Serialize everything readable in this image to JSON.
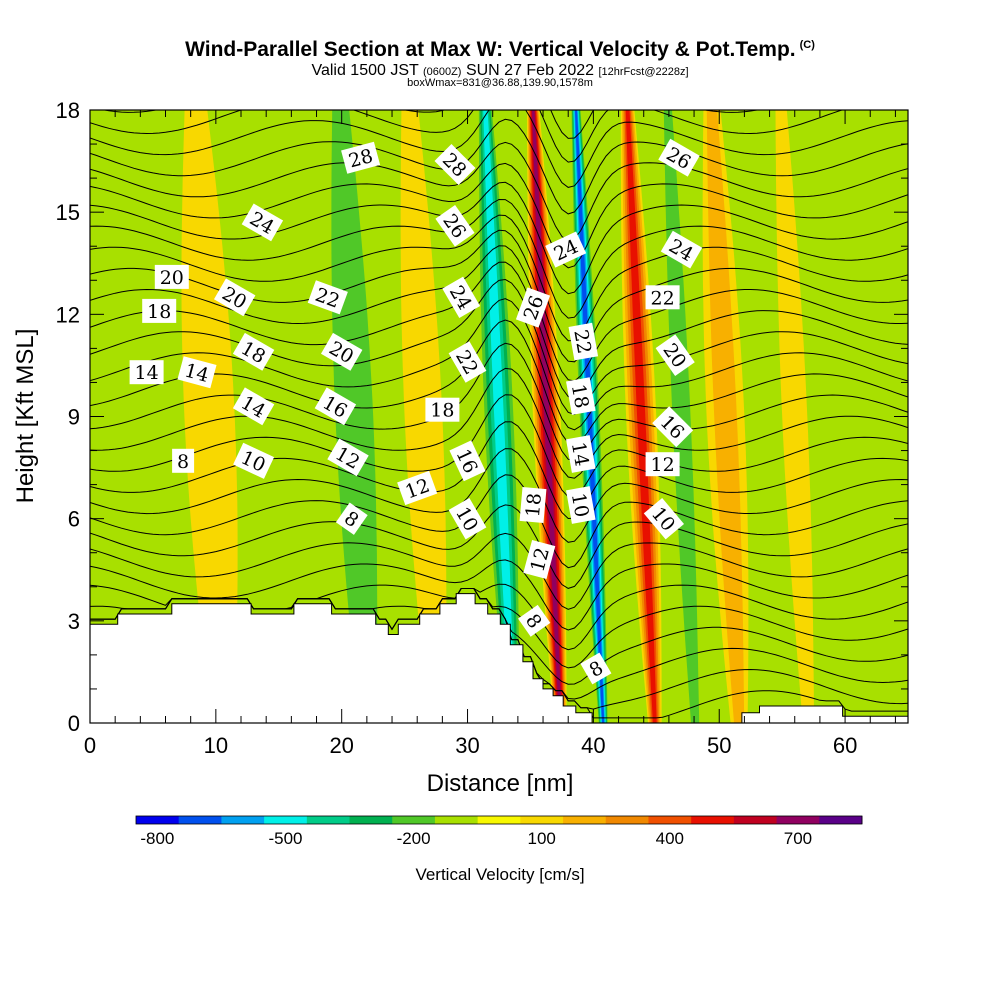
{
  "header": {
    "title": "Wind-Parallel Section at Max W: Vertical Velocity & Pot.Temp.",
    "copyright": "(C)",
    "valid_prefix": "Valid 1500 JST",
    "valid_zulu": "(0600Z)",
    "valid_date": "SUN 27 Feb 2022",
    "forecast": "[12hrFcst@2228z]",
    "box_info": "boxWmax=831@36.88,139.90,1578m"
  },
  "colors": {
    "bins": [
      "#0000ee",
      "#0050ee",
      "#00a0f0",
      "#00f0e8",
      "#00cc88",
      "#00b050",
      "#50c828",
      "#a8e000",
      "#f8f800",
      "#f8d800",
      "#f8b000",
      "#f08800",
      "#f05000",
      "#e81000",
      "#c00020",
      "#900060",
      "#5a0088"
    ],
    "background": "#a8e000",
    "terrain": "#ffffff"
  },
  "chart_data": {
    "type": "heatmap",
    "xlabel": "Distance [nm]",
    "ylabel": "Height [Kft MSL]",
    "xlim": [
      0,
      65
    ],
    "ylim": [
      0,
      18
    ],
    "xticks": [
      0,
      10,
      20,
      30,
      40,
      50,
      60
    ],
    "yticks": [
      0,
      3,
      6,
      9,
      12,
      15,
      18
    ],
    "colorbar": {
      "label": "Vertical Velocity [cm/s]",
      "tick_labels": [
        "-800",
        "-500",
        "-200",
        "100",
        "400",
        "700"
      ],
      "tick_values": [
        -800,
        -500,
        -200,
        100,
        400,
        700
      ],
      "bin_edges": [
        -850,
        -750,
        -650,
        -550,
        -450,
        -350,
        -250,
        -150,
        -50,
        50,
        150,
        250,
        350,
        450,
        550,
        650,
        750,
        850
      ]
    },
    "vertical_velocity_bands": [
      {
        "x_center": 9.5,
        "half_width": 2.0,
        "w": 100
      },
      {
        "x_center": 21.0,
        "half_width": 2.5,
        "w": -150
      },
      {
        "x_center": 26.5,
        "half_width": 1.5,
        "w": 100
      },
      {
        "x_center": 32.5,
        "half_width": 1.4,
        "w": -450
      },
      {
        "x_center": 36.3,
        "half_width": 1.1,
        "w": 700
      },
      {
        "x_center": 39.7,
        "half_width": 0.9,
        "w": -700
      },
      {
        "x_center": 43.8,
        "half_width": 1.2,
        "w": 500
      },
      {
        "x_center": 47.0,
        "half_width": 1.2,
        "w": -150
      },
      {
        "x_center": 50.5,
        "half_width": 1.5,
        "w": 150
      },
      {
        "x_center": 56.0,
        "half_width": 1.0,
        "w": 100
      }
    ],
    "terrain": {
      "x": [
        0,
        2.2,
        2.2,
        6.5,
        6.5,
        12.8,
        12.8,
        16.2,
        16.2,
        19.2,
        19.2,
        22.7,
        22.7,
        23.7,
        23.7,
        24.5,
        24.5,
        26.2,
        26.2,
        27.8,
        27.8,
        29.1,
        29.1,
        30.6,
        30.6,
        31.6,
        31.6,
        32.6,
        32.6,
        33.4,
        33.4,
        34.4,
        34.4,
        35.2,
        35.2,
        36.0,
        36.0,
        36.8,
        36.8,
        37.6,
        37.6,
        38.6,
        38.6,
        39.9,
        39.9,
        41.3,
        41.3,
        51.8,
        51.8,
        53.2,
        53.2,
        59.8,
        59.8,
        65
      ],
      "height": [
        2.9,
        2.9,
        3.2,
        3.2,
        3.5,
        3.5,
        3.2,
        3.2,
        3.5,
        3.5,
        3.2,
        3.2,
        2.9,
        2.9,
        2.6,
        2.6,
        2.9,
        2.9,
        3.2,
        3.2,
        3.5,
        3.5,
        3.8,
        3.8,
        3.5,
        3.5,
        3.2,
        3.2,
        2.9,
        2.9,
        2.3,
        2.3,
        1.8,
        1.8,
        1.3,
        1.3,
        1.0,
        1.0,
        0.8,
        0.8,
        0.5,
        0.5,
        0.3,
        0.3,
        0.0,
        0.0,
        0.0,
        0.0,
        0.3,
        0.3,
        0.5,
        0.5,
        0.2,
        0.2
      ]
    },
    "theta_contour_labels": [
      {
        "value": "28",
        "x": 21.5,
        "y": 16.6,
        "angle": -15
      },
      {
        "value": "24",
        "x": 13.7,
        "y": 14.7,
        "angle": 30
      },
      {
        "value": "20",
        "x": 6.5,
        "y": 13.1,
        "angle": 0
      },
      {
        "value": "18",
        "x": 5.5,
        "y": 12.1,
        "angle": 0
      },
      {
        "value": "20",
        "x": 11.5,
        "y": 12.5,
        "angle": 30
      },
      {
        "value": "22",
        "x": 18.9,
        "y": 12.5,
        "angle": 20
      },
      {
        "value": "14",
        "x": 4.5,
        "y": 10.3,
        "angle": 0
      },
      {
        "value": "14",
        "x": 8.5,
        "y": 10.3,
        "angle": 15
      },
      {
        "value": "18",
        "x": 13.0,
        "y": 10.9,
        "angle": 30
      },
      {
        "value": "20",
        "x": 20.0,
        "y": 10.9,
        "angle": 30
      },
      {
        "value": "14",
        "x": 13.0,
        "y": 9.3,
        "angle": 30
      },
      {
        "value": "16",
        "x": 19.5,
        "y": 9.3,
        "angle": 30
      },
      {
        "value": "18",
        "x": 28.0,
        "y": 9.2,
        "angle": 0
      },
      {
        "value": "8",
        "x": 7.4,
        "y": 7.7,
        "angle": 0
      },
      {
        "value": "10",
        "x": 13.0,
        "y": 7.7,
        "angle": 25
      },
      {
        "value": "12",
        "x": 20.5,
        "y": 7.8,
        "angle": 30
      },
      {
        "value": "12",
        "x": 26.0,
        "y": 6.9,
        "angle": -20
      },
      {
        "value": "8",
        "x": 20.8,
        "y": 6.0,
        "angle": 35
      },
      {
        "value": "28",
        "x": 29.0,
        "y": 16.4,
        "angle": 45
      },
      {
        "value": "26",
        "x": 29.0,
        "y": 14.6,
        "angle": 55
      },
      {
        "value": "24",
        "x": 29.5,
        "y": 12.5,
        "angle": 60
      },
      {
        "value": "22",
        "x": 30.0,
        "y": 10.6,
        "angle": 60
      },
      {
        "value": "16",
        "x": 30.0,
        "y": 7.7,
        "angle": 65
      },
      {
        "value": "10",
        "x": 30.0,
        "y": 6.0,
        "angle": 60
      },
      {
        "value": "26",
        "x": 35.2,
        "y": 12.2,
        "angle": -70
      },
      {
        "value": "24",
        "x": 37.8,
        "y": 13.9,
        "angle": -25
      },
      {
        "value": "18",
        "x": 35.2,
        "y": 6.4,
        "angle": -85
      },
      {
        "value": "12",
        "x": 35.7,
        "y": 4.8,
        "angle": -75
      },
      {
        "value": "8",
        "x": 35.3,
        "y": 3.0,
        "angle": 55
      },
      {
        "value": "22",
        "x": 39.2,
        "y": 11.2,
        "angle": 80
      },
      {
        "value": "18",
        "x": 39.0,
        "y": 9.6,
        "angle": 80
      },
      {
        "value": "14",
        "x": 39.0,
        "y": 7.9,
        "angle": 80
      },
      {
        "value": "10",
        "x": 39.0,
        "y": 6.4,
        "angle": 80
      },
      {
        "value": "8",
        "x": 40.2,
        "y": 1.6,
        "angle": -30
      },
      {
        "value": "22",
        "x": 45.5,
        "y": 12.5,
        "angle": 0
      },
      {
        "value": "20",
        "x": 46.5,
        "y": 10.8,
        "angle": 55
      },
      {
        "value": "16",
        "x": 46.3,
        "y": 8.7,
        "angle": 45
      },
      {
        "value": "12",
        "x": 45.5,
        "y": 7.6,
        "angle": 0
      },
      {
        "value": "10",
        "x": 45.6,
        "y": 6.0,
        "angle": 50
      },
      {
        "value": "26",
        "x": 46.8,
        "y": 16.6,
        "angle": 30
      },
      {
        "value": "24",
        "x": 47.0,
        "y": 13.9,
        "angle": 30
      }
    ]
  }
}
